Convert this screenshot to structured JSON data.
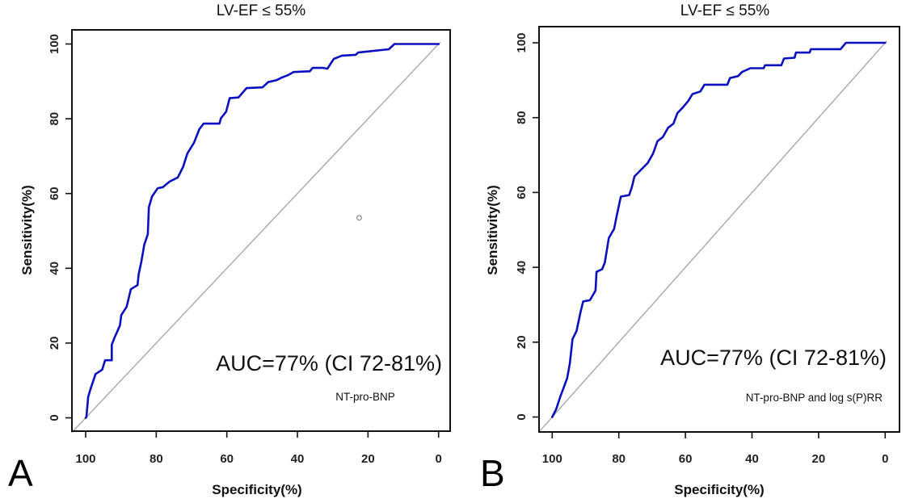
{
  "figure": {
    "panels": [
      {
        "letter": "A",
        "title": "LV-EF ≤ 55%",
        "xlabel": "Specificity(%)",
        "ylabel": "Sensitivity(%)",
        "auc_text": "AUC=77% (CI 72-81%)",
        "subtitle": "NT-pro-BNP"
      },
      {
        "letter": "B",
        "title": "LV-EF ≤ 55%",
        "xlabel": "Specificity(%)",
        "ylabel": "Sensitivity(%)",
        "auc_text": "AUC=77% (CI 72-81%)",
        "subtitle": "NT-pro-BNP and log s(P)RR"
      }
    ],
    "colors": {
      "roc_curve": "#0a10c0",
      "reference_line": "#a8a8a8",
      "axis": "#111111"
    }
  },
  "chart_data": [
    {
      "type": "line",
      "panel": "A",
      "title": "LV-EF ≤ 55%",
      "xlabel": "Specificity(%)",
      "ylabel": "Sensitivity(%)",
      "xlim": [
        100,
        0
      ],
      "ylim": [
        0,
        100
      ],
      "x_reversed": true,
      "xticks": [
        100,
        80,
        60,
        40,
        20,
        0
      ],
      "yticks": [
        0,
        20,
        40,
        60,
        80,
        100
      ],
      "grid": false,
      "annotations": [
        "AUC=77% (CI 72-81%)",
        "NT-pro-BNP"
      ],
      "marker_point": {
        "specificity": 22.5,
        "sensitivity": 53.5
      },
      "series": [
        {
          "name": "ROC NT-pro-BNP",
          "specificity": [
            100,
            99.8,
            99.3,
            98.7,
            97.2,
            95.3,
            94.5,
            92.6,
            92.6,
            91.8,
            90.3,
            89.9,
            88.4,
            87.2,
            85.3,
            85.0,
            84.2,
            83.4,
            82.4,
            82.1,
            81.2,
            79.6,
            78.1,
            76.2,
            73.9,
            72.4,
            71.2,
            69.3,
            67.8,
            66.6,
            62.1,
            61.7,
            60.2,
            59.2,
            56.7,
            54.4,
            49.9,
            48.3,
            46.0,
            44.5,
            42.6,
            41.1,
            36.5,
            35.7,
            32.7,
            31.5,
            29.7,
            27.4,
            23.5,
            22.8,
            14.1,
            12.5,
            0
          ],
          "sensitivity": [
            0,
            0.2,
            5.6,
            7.5,
            11.7,
            12.9,
            15.4,
            15.4,
            19.6,
            21.5,
            24.7,
            27.5,
            29.7,
            34.4,
            35.5,
            38.3,
            41.9,
            46.3,
            49.1,
            56.3,
            59.2,
            61.4,
            61.7,
            63.2,
            64.3,
            67.1,
            70.7,
            73.6,
            77.2,
            78.7,
            78.7,
            80.1,
            81.9,
            85.5,
            85.7,
            88.2,
            88.4,
            89.8,
            90.3,
            91.0,
            91.7,
            92.5,
            92.7,
            93.6,
            93.6,
            93.4,
            96.0,
            96.9,
            97.1,
            97.7,
            98.6,
            100,
            100
          ]
        },
        {
          "name": "Reference (chance)",
          "specificity": [
            100,
            0
          ],
          "sensitivity": [
            0,
            100
          ]
        }
      ]
    },
    {
      "type": "line",
      "panel": "B",
      "title": "LV-EF ≤ 55%",
      "xlabel": "Specificity(%)",
      "ylabel": "Sensitivity(%)",
      "xlim": [
        100,
        0
      ],
      "ylim": [
        0,
        100
      ],
      "x_reversed": true,
      "xticks": [
        100,
        80,
        60,
        40,
        20,
        0
      ],
      "yticks": [
        0,
        20,
        40,
        60,
        80,
        100
      ],
      "grid": false,
      "annotations": [
        "AUC=77% (CI 72-81%)",
        "NT-pro-BNP and log s(P)RR"
      ],
      "series": [
        {
          "name": "ROC NT-pro-BNP and log s(P)RR",
          "specificity": [
            100,
            98.8,
            97.6,
            96.7,
            95.5,
            94.7,
            93.9,
            92.7,
            91.5,
            90.7,
            88.7,
            87.0,
            86.7,
            85.0,
            84.2,
            83.0,
            81.4,
            80.6,
            79.4,
            76.9,
            76.1,
            75.3,
            73.3,
            71.3,
            69.7,
            68.4,
            66.8,
            65.2,
            63.6,
            62.4,
            60.8,
            59.1,
            57.9,
            55.5,
            54.3,
            47.4,
            46.6,
            44.2,
            43.0,
            40.5,
            36.5,
            36.1,
            31.2,
            30.4,
            27.2,
            26.8,
            22.7,
            22.3,
            13.4,
            11.8,
            0
          ],
          "sensitivity": [
            0,
            2.1,
            5.4,
            7.5,
            10.4,
            14.3,
            20.8,
            23.0,
            28.0,
            30.9,
            31.2,
            33.8,
            38.8,
            39.5,
            41.3,
            47.8,
            50.3,
            53.9,
            58.9,
            59.3,
            61.4,
            64.3,
            66.1,
            67.9,
            70.4,
            73.7,
            74.8,
            77.3,
            78.4,
            81.2,
            82.7,
            84.5,
            86.3,
            87.0,
            88.8,
            88.8,
            90.6,
            91.1,
            92.2,
            93.2,
            93.2,
            94.0,
            94.0,
            95.8,
            96.0,
            97.4,
            97.4,
            98.3,
            98.3,
            100,
            100
          ]
        },
        {
          "name": "Reference (chance)",
          "specificity": [
            100,
            0
          ],
          "sensitivity": [
            0,
            100
          ]
        }
      ]
    }
  ]
}
